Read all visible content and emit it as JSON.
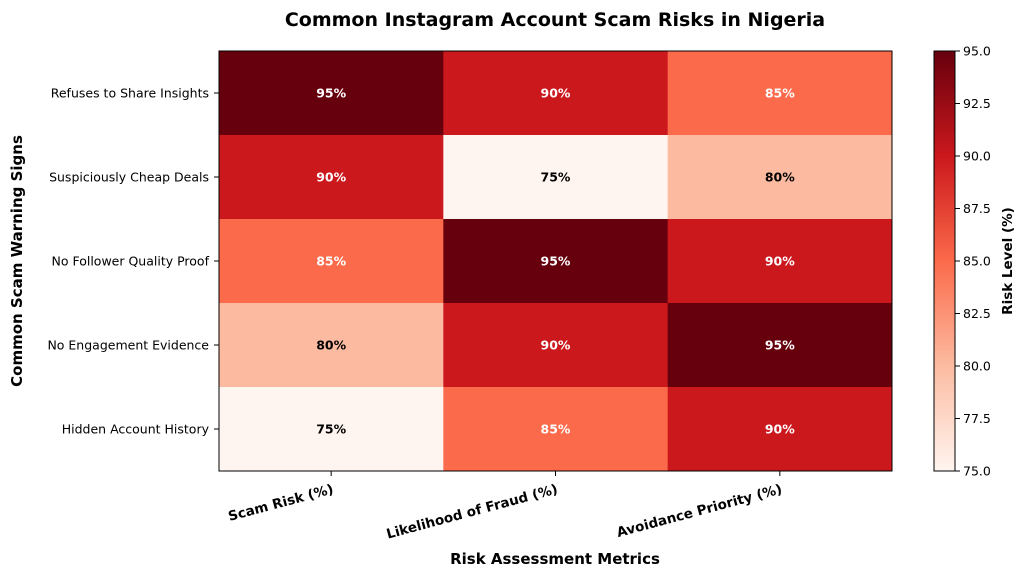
{
  "chart_data": {
    "type": "heatmap",
    "title": "Common Instagram Account Scam Risks in Nigeria",
    "xlabel": "Risk Assessment Metrics",
    "ylabel": "Common Scam Warning Signs",
    "columns": [
      "Scam Risk (%)",
      "Likelihood of Fraud (%)",
      "Avoidance Priority (%)"
    ],
    "rows": [
      "Refuses to Share Insights",
      "Suspiciously Cheap Deals",
      "No Follower Quality Proof",
      "No Engagement Evidence",
      "Hidden Account History"
    ],
    "values": [
      [
        95,
        90,
        85
      ],
      [
        90,
        75,
        80
      ],
      [
        85,
        95,
        90
      ],
      [
        80,
        90,
        95
      ],
      [
        75,
        85,
        90
      ]
    ],
    "value_suffix": "%",
    "colormap": "Reds",
    "colorbar": {
      "label": "Risk Level (%)",
      "range": [
        75,
        95
      ],
      "ticks": [
        "75.0",
        "77.5",
        "80.0",
        "82.5",
        "85.0",
        "87.5",
        "90.0",
        "92.5",
        "95.0"
      ]
    }
  }
}
